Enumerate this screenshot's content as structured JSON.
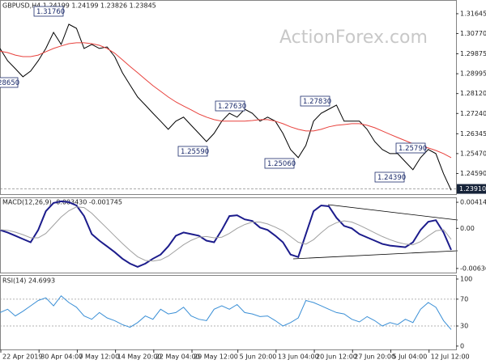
{
  "chart_data": [
    {
      "type": "line",
      "title": "GBPUSD,H4 1.24199 1.24199 1.23826 1.23845",
      "watermark": "ActionForex.com",
      "xlim": [
        0,
        59
      ],
      "ylim": [
        1.2368,
        1.3225
      ],
      "yticks": [
        1.31645,
        {
          "value": 1.3077,
          "label": "1.30770"
        },
        1.29875,
        1.28995,
        {
          "value": 1.2812,
          "label": "1.28120"
        },
        {
          "value": 1.2724,
          "label": "1.27240"
        },
        1.26345,
        {
          "value": 1.2547,
          "label": "1.25470"
        },
        {
          "value": 1.2459,
          "label": "1.24590"
        }
      ],
      "current_price": {
        "value": 1.2391,
        "label": "1.23910"
      },
      "series": [
        {
          "color": "#000000",
          "values": [
            1.3011,
            1.2957,
            1.2922,
            1.2886,
            1.2911,
            1.2957,
            1.3011,
            1.3082,
            1.3029,
            1.3118,
            1.31,
            1.3011,
            1.3029,
            1.3011,
            1.3018,
            1.2975,
            1.2904,
            1.285,
            1.2797,
            1.2761,
            1.2725,
            1.269,
            1.2654,
            1.269,
            1.2708,
            1.2672,
            1.2636,
            1.26,
            1.2636,
            1.269,
            1.2725,
            1.2708,
            1.2743,
            1.2725,
            1.269,
            1.2708,
            1.269,
            1.2636,
            1.2565,
            1.2529,
            1.2583,
            1.269,
            1.2725,
            1.2743,
            1.2761,
            1.269,
            1.269,
            1.269,
            1.2654,
            1.26,
            1.2565,
            1.2547,
            1.2547,
            1.2511,
            1.2476,
            1.2529,
            1.2565,
            1.2547,
            1.2458,
            1.2385
          ]
        },
        {
          "color": "#e8413c",
          "values": [
            1.2999,
            1.2993,
            1.2982,
            1.2975,
            1.2975,
            1.2982,
            1.2997,
            1.3011,
            1.3022,
            1.3032,
            1.3036,
            1.3036,
            1.3032,
            1.3025,
            1.3011,
            1.299,
            1.2961,
            1.2932,
            1.2904,
            1.2875,
            1.2847,
            1.2822,
            1.2797,
            1.2775,
            1.2757,
            1.274,
            1.2722,
            1.2708,
            1.2697,
            1.269,
            1.269,
            1.269,
            1.269,
            1.2693,
            1.2697,
            1.2697,
            1.269,
            1.2679,
            1.2665,
            1.2654,
            1.2647,
            1.2647,
            1.2654,
            1.2665,
            1.2672,
            1.2675,
            1.2679,
            1.2679,
            1.2672,
            1.2661,
            1.2647,
            1.2632,
            1.2618,
            1.2604,
            1.259,
            1.2579,
            1.2572,
            1.2561,
            1.2547,
            1.2529
          ]
        }
      ],
      "annotations": [
        "1.31760",
        "1.28650",
        "1.25590",
        "1.27630",
        "1.25060",
        "1.27830",
        "1.25790",
        "1.24390"
      ]
    },
    {
      "type": "line",
      "title": "MACD(12,26,9) -0.003430 -0.001745",
      "xlim": [
        0,
        59
      ],
      "ylim": [
        -0.00702,
        0.00492
      ],
      "yticks": [
        0.004141,
        {
          "value": 0,
          "label": "0.00"
        },
        -0.006365
      ],
      "series": [
        {
          "color": "#1c1c8c",
          "width": 2,
          "values": [
            -0.00026,
            -0.00065,
            -0.00117,
            -0.00169,
            -0.00221,
            -0.00026,
            0.00273,
            0.00403,
            0.00429,
            0.00416,
            0.00364,
            0.00195,
            -0.00091,
            -0.00195,
            -0.00286,
            -0.00377,
            -0.00481,
            -0.00559,
            -0.00611,
            -0.00559,
            -0.00481,
            -0.00416,
            -0.00286,
            -0.00117,
            -0.00065,
            -0.00091,
            -0.00117,
            -0.00195,
            -0.00221,
            -0.00026,
            0.00195,
            0.00208,
            0.00143,
            0.00117,
            0.00013,
            -0.00026,
            -0.00117,
            -0.00221,
            -0.00416,
            -0.00455,
            -0.00091,
            0.00273,
            0.00364,
            0.00351,
            0.00169,
            0.00039,
            0,
            -0.00091,
            -0.00143,
            -0.00195,
            -0.00247,
            -0.00273,
            -0.00286,
            -0.00299,
            -0.00221,
            -0.00026,
            0.00104,
            0.0013,
            -0.00065,
            -0.00343
          ]
        },
        {
          "color": "#a0a0a0",
          "width": 1,
          "values": [
            -0.0002,
            -0.0003,
            -0.0006,
            -0.001,
            -0.0015,
            -0.0015,
            -0.0008,
            0.0005,
            0.0018,
            0.0028,
            0.0034,
            0.0033,
            0.0024,
            0.0012,
            0,
            -0.0012,
            -0.0024,
            -0.0035,
            -0.0045,
            -0.0051,
            -0.0052,
            -0.005,
            -0.0044,
            -0.0035,
            -0.0026,
            -0.0019,
            -0.0014,
            -0.0013,
            -0.0015,
            -0.0014,
            -0.0008,
            0,
            0.0006,
            0.001,
            0.001,
            0.0007,
            0.0002,
            -0.0004,
            -0.0013,
            -0.0022,
            -0.0025,
            -0.0018,
            -0.0007,
            0.0003,
            0.0009,
            0.0012,
            0.001,
            0.0005,
            -0.0001,
            -0.0007,
            -0.0013,
            -0.0018,
            -0.0022,
            -0.0025,
            -0.0026,
            -0.0021,
            -0.0012,
            -0.0004,
            -0.0002,
            -0.001745
          ]
        }
      ]
    },
    {
      "type": "line",
      "title": "RSI(14) 24.6993",
      "xlim": [
        0,
        59
      ],
      "ylim": [
        -5,
        106
      ],
      "yticks": [
        100,
        70,
        30,
        0
      ],
      "levels": [
        70,
        30
      ],
      "xticks": [
        {
          "value": 0,
          "label": "22 Apr 2019"
        },
        {
          "value": 5,
          "label": "30 Apr 04:00"
        },
        {
          "value": 10,
          "label": "7 May 12:00"
        },
        {
          "value": 15,
          "label": "14 May 20:00"
        },
        {
          "value": 20,
          "label": "22 May 04:00"
        },
        {
          "value": 25,
          "label": "29 May 12:00"
        },
        {
          "value": 31,
          "label": "5 Jun 20:00"
        },
        {
          "value": 36,
          "label": "13 Jun 04:00"
        },
        {
          "value": 41,
          "label": "20 Jun 12:00"
        },
        {
          "value": 46,
          "label": "27 Jun 20:00"
        },
        {
          "value": 51,
          "label": "5 Jul 04:00"
        },
        {
          "value": 56,
          "label": "12 Jul 12:00"
        }
      ],
      "series": [
        {
          "color": "#3a8fd6",
          "width": 1,
          "values": [
            50,
            55,
            45,
            52,
            60,
            68,
            72,
            60,
            75,
            65,
            58,
            45,
            40,
            50,
            42,
            38,
            32,
            28,
            35,
            45,
            40,
            55,
            48,
            50,
            58,
            45,
            40,
            38,
            55,
            60,
            55,
            62,
            50,
            48,
            44,
            45,
            38,
            30,
            35,
            42,
            68,
            65,
            60,
            55,
            50,
            48,
            40,
            36,
            44,
            38,
            30,
            35,
            32,
            40,
            35,
            55,
            65,
            58,
            38,
            24.6993
          ]
        }
      ]
    }
  ]
}
